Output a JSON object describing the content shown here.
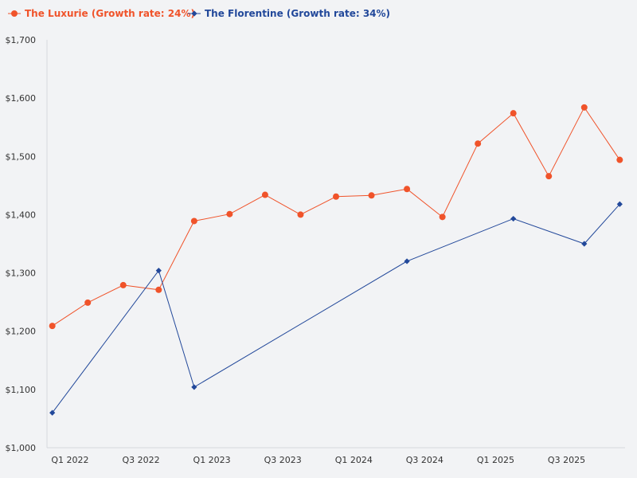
{
  "chart_data": {
    "type": "line",
    "title": "",
    "xlabel": "",
    "ylabel": "",
    "ylim": [
      1000,
      1700
    ],
    "y_ticks": [
      "$1,000",
      "$1,100",
      "$1,200",
      "$1,300",
      "$1,400",
      "$1,500",
      "$1,600",
      "$1,700"
    ],
    "y_tick_values": [
      1000,
      1100,
      1200,
      1300,
      1400,
      1500,
      1600,
      1700
    ],
    "x_tick_labels": [
      "Q1 2022",
      "Q3 2022",
      "Q1 2023",
      "Q3 2023",
      "Q1 2024",
      "Q3 2024",
      "Q1 2025",
      "Q3 2025"
    ],
    "x_tick_indices": [
      0.5,
      2.5,
      4.5,
      6.5,
      8.5,
      10.5,
      12.5,
      14.5
    ],
    "x_range": [
      -0.15,
      16.15
    ],
    "legend_position": "top-left",
    "series": [
      {
        "name": "The Luxurie (Growth rate: 24%)",
        "color": "#f0532a",
        "marker": "circle",
        "x": [
          0,
          1,
          2,
          3,
          4,
          5,
          6,
          7,
          8,
          9,
          10,
          11,
          12,
          13,
          14,
          15,
          16
        ],
        "values": [
          1209,
          1249,
          1279,
          1271,
          1389,
          1401,
          1434,
          1400,
          1431,
          1433,
          1444,
          1396,
          1522,
          1574,
          1466,
          1584,
          1494
        ]
      },
      {
        "name": "The Florentine (Growth rate: 34%)",
        "color": "#22489a",
        "marker": "diamond",
        "x": [
          0,
          3,
          4,
          10,
          13,
          15,
          16
        ],
        "values": [
          1060,
          1304,
          1104,
          1320,
          1393,
          1350,
          1418
        ]
      }
    ]
  }
}
